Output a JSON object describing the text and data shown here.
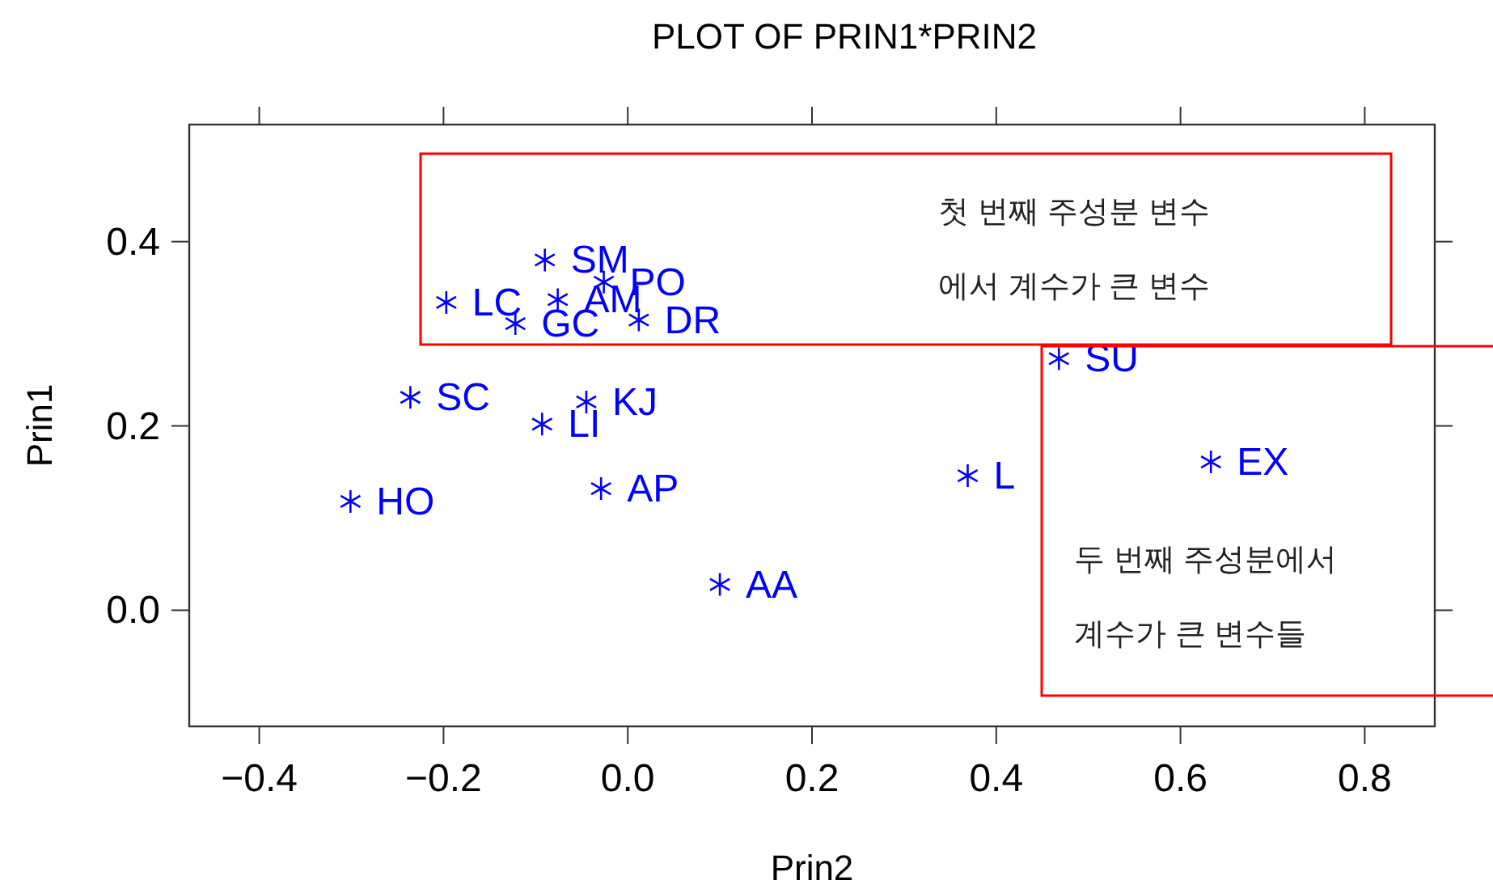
{
  "chart_data": {
    "type": "scatter",
    "title": "PLOT OF PRIN1*PRIN2",
    "xlabel": "Prin2",
    "ylabel": "Prin1",
    "xlim": [
      -0.476,
      0.876
    ],
    "ylim": [
      -0.126,
      0.527
    ],
    "xticks": [
      {
        "value": -0.4,
        "label": "−0.4"
      },
      {
        "value": -0.2,
        "label": "−0.2"
      },
      {
        "value": 0,
        "label": "0.0"
      },
      {
        "value": 0.2,
        "label": "0.2"
      },
      {
        "value": 0.4,
        "label": "0.4"
      },
      {
        "value": 0.6,
        "label": "0.6"
      },
      {
        "value": 0.8,
        "label": "0.8"
      }
    ],
    "yticks": [
      {
        "value": 0,
        "label": "0.0"
      },
      {
        "value": 0.2,
        "label": "0.2"
      },
      {
        "value": 0.4,
        "label": "0.4"
      }
    ],
    "marker": "cross",
    "grid": false,
    "series": [
      {
        "color": "#0000ff",
        "x": [
          -0.122,
          -0.09,
          -0.197,
          -0.076,
          -0.026,
          0.012,
          -0.236,
          -0.045,
          -0.093,
          -0.029,
          -0.301,
          0.1,
          0.468,
          0.369,
          0.633
        ],
        "values": [
          0.311,
          0.38,
          0.334,
          0.337,
          0.356,
          0.315,
          0.231,
          0.226,
          0.202,
          0.132,
          0.118,
          0.028,
          0.273,
          0.146,
          0.161
        ],
        "value_labels": [
          "GC",
          "SM",
          "LC",
          "AM",
          "PO",
          "DR",
          "SC",
          "KJ",
          "LI",
          "AP",
          "HO",
          "AA",
          "SU",
          "L",
          "EX"
        ]
      }
    ],
    "annotations": [
      "첫 번째 주성분 변수\n에서 계수가 큰 변수",
      "두 번째 주성분에서\n계수가 큰 변수들"
    ]
  }
}
